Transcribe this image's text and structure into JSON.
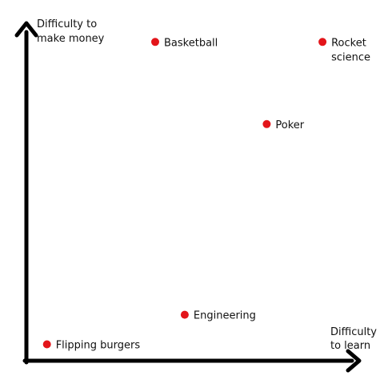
{
  "chart_data": {
    "type": "scatter",
    "title": "",
    "ylabel_lines": [
      "Difficulty to",
      "make money"
    ],
    "xlabel_lines": [
      "Difficulty",
      "to learn"
    ],
    "x_axis_ticks": "none",
    "y_axis_ticks": "none",
    "xlim": [
      0,
      100
    ],
    "ylim": [
      0,
      100
    ],
    "grid": false,
    "legend": "none",
    "colors": {
      "point": "#e3151a",
      "axis": "#000000",
      "text": "#111111",
      "background": "#ffffff"
    },
    "points": [
      {
        "label": "Flipping burgers",
        "x": 7,
        "y": 5
      },
      {
        "label": "Engineering",
        "x": 49,
        "y": 14
      },
      {
        "label": "Basketball",
        "x": 40,
        "y": 97
      },
      {
        "label": "Poker",
        "x": 74,
        "y": 72
      },
      {
        "label": "Rocket science",
        "label_lines": [
          "Rocket",
          "science"
        ],
        "x": 91,
        "y": 97
      }
    ]
  }
}
